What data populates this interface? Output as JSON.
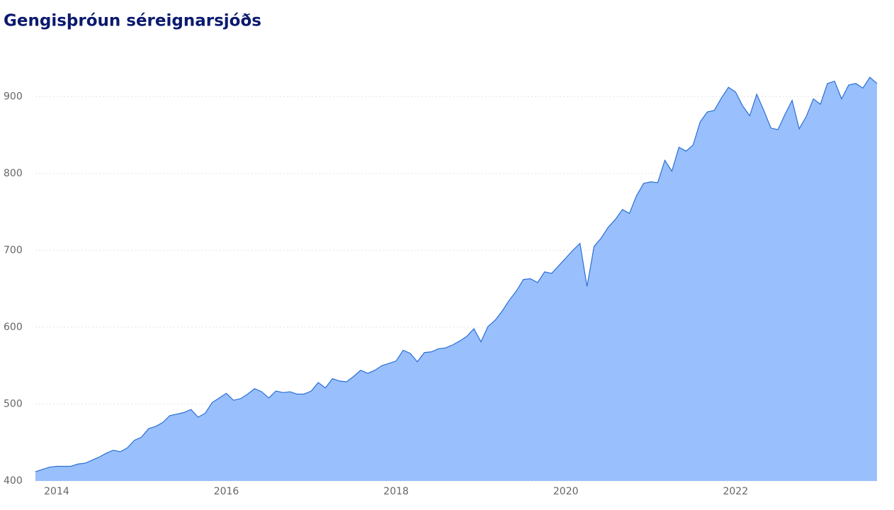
{
  "chart_data": {
    "type": "area",
    "title": "Gengisþróun séreignarsjóðs",
    "x": [
      2013.75,
      2013.833,
      2013.917,
      2014,
      2014.083,
      2014.167,
      2014.25,
      2014.333,
      2014.417,
      2014.5,
      2014.583,
      2014.667,
      2014.75,
      2014.833,
      2014.917,
      2015,
      2015.083,
      2015.167,
      2015.25,
      2015.333,
      2015.417,
      2015.5,
      2015.583,
      2015.667,
      2015.75,
      2015.833,
      2015.917,
      2016,
      2016.083,
      2016.167,
      2016.25,
      2016.333,
      2016.417,
      2016.5,
      2016.583,
      2016.667,
      2016.75,
      2016.833,
      2016.917,
      2017,
      2017.083,
      2017.167,
      2017.25,
      2017.333,
      2017.417,
      2017.5,
      2017.583,
      2017.667,
      2017.75,
      2017.833,
      2017.917,
      2018,
      2018.083,
      2018.167,
      2018.25,
      2018.333,
      2018.417,
      2018.5,
      2018.583,
      2018.667,
      2018.75,
      2018.833,
      2018.917,
      2019,
      2019.083,
      2019.167,
      2019.25,
      2019.333,
      2019.417,
      2019.5,
      2019.583,
      2019.667,
      2019.75,
      2019.833,
      2019.917,
      2020,
      2020.083,
      2020.167,
      2020.25,
      2020.333,
      2020.417,
      2020.5,
      2020.583,
      2020.667,
      2020.75,
      2020.833,
      2020.917,
      2021,
      2021.083,
      2021.167,
      2021.25,
      2021.333,
      2021.417,
      2021.5,
      2021.583,
      2021.667,
      2021.75,
      2021.833,
      2021.917,
      2022,
      2022.083,
      2022.167,
      2022.25,
      2022.333,
      2022.417,
      2022.5,
      2022.583,
      2022.667,
      2022.75,
      2022.833,
      2022.917,
      2023,
      2023.083,
      2023.167,
      2023.25,
      2023.333,
      2023.417,
      2023.5,
      2023.583,
      2023.667
    ],
    "values": [
      412,
      415,
      418,
      419,
      419,
      419,
      422,
      423,
      427,
      431,
      436,
      440,
      438,
      443,
      453,
      457,
      468,
      471,
      476,
      485,
      487,
      489,
      493,
      483,
      488,
      502,
      508,
      514,
      505,
      507,
      513,
      520,
      516,
      508,
      517,
      515,
      516,
      513,
      513,
      517,
      528,
      521,
      533,
      530,
      529,
      536,
      544,
      540,
      544,
      550,
      553,
      556,
      570,
      566,
      555,
      567,
      568,
      572,
      573,
      577,
      582,
      588,
      598,
      581,
      601,
      609,
      621,
      635,
      647,
      662,
      663,
      658,
      672,
      670,
      680,
      690,
      700,
      709,
      653,
      705,
      716,
      730,
      740,
      753,
      748,
      771,
      787,
      789,
      788,
      817,
      803,
      834,
      829,
      837,
      867,
      880,
      882,
      898,
      912,
      906,
      888,
      875,
      903,
      882,
      859,
      857,
      877,
      895,
      858,
      874,
      897,
      890,
      917,
      920,
      897,
      915,
      917,
      911,
      925,
      917
    ],
    "color": "#99c0fc",
    "line_color": "#2a6fd6",
    "xlim": [
      2013.75,
      2023.667
    ],
    "xticks": [
      2014,
      2016,
      2018,
      2020,
      2022
    ],
    "ylim": [
      400,
      950
    ],
    "yticks": [
      400,
      500,
      600,
      700,
      800,
      900
    ],
    "grid": true
  }
}
